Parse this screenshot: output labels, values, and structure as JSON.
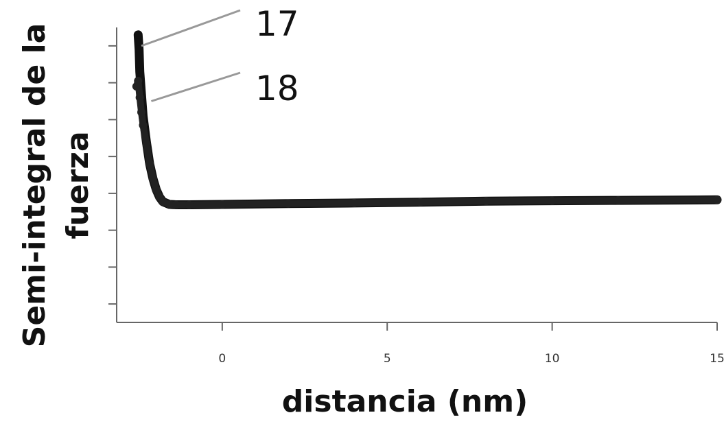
{
  "chart_data": {
    "type": "line",
    "title": "",
    "xlabel": "distancia (nm)",
    "ylabel_lines": [
      "Semi-integral de la",
      "fuerza"
    ],
    "xlim": [
      -3.2,
      15
    ],
    "ylim": [
      -8,
      8
    ],
    "x_ticks": [
      0,
      5,
      10,
      15
    ],
    "x_tick_labels": [
      "0",
      "5",
      "10",
      "15"
    ],
    "y_ticks": [
      -7,
      -5,
      -3,
      -1,
      1,
      3,
      5,
      7
    ],
    "y_tick_labels_shown": false,
    "grid": false,
    "series": [
      {
        "name": "17",
        "color": "#111111",
        "x": [
          -2.55,
          -2.52,
          -2.5,
          -2.45,
          -2.4,
          -2.35,
          -2.3,
          -2.2,
          -2.1,
          -2.0,
          -1.9,
          -1.8,
          -1.6,
          -1.4,
          -1.0,
          0,
          2,
          4,
          6,
          8,
          10,
          12,
          15
        ],
        "y": [
          7.6,
          6.8,
          5.6,
          4.4,
          3.2,
          2.5,
          1.8,
          0.6,
          -0.2,
          -0.8,
          -1.2,
          -1.45,
          -1.6,
          -1.62,
          -1.62,
          -1.6,
          -1.55,
          -1.52,
          -1.48,
          -1.42,
          -1.4,
          -1.38,
          -1.35
        ]
      },
      {
        "name": "18",
        "color": "#222222",
        "x": [
          -2.6,
          -2.55,
          -2.5,
          -2.45,
          -2.4,
          -2.3,
          -2.2,
          -2.1,
          -2.0,
          -1.9,
          -1.8,
          -1.6,
          -1.4,
          -1.0,
          0,
          2,
          4,
          6,
          8,
          10,
          12,
          15
        ],
        "y": [
          4.8,
          5.1,
          4.2,
          3.4,
          2.7,
          1.7,
          0.6,
          -0.2,
          -0.8,
          -1.2,
          -1.45,
          -1.6,
          -1.62,
          -1.62,
          -1.6,
          -1.55,
          -1.52,
          -1.48,
          -1.42,
          -1.4,
          -1.38,
          -1.35
        ]
      }
    ],
    "annotations": [
      {
        "text": "17",
        "points_to_series": "17",
        "at_x": -2.45,
        "at_y": 7.0
      },
      {
        "text": "18",
        "points_to_series": "18",
        "at_x": -2.15,
        "at_y": 4.0
      }
    ],
    "colors": {
      "axis": "#666666",
      "leader_line": "#999999",
      "curve": "#111111"
    }
  }
}
